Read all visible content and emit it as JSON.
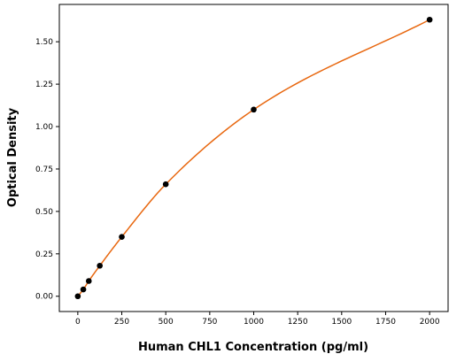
{
  "chart_data": {
    "type": "scatter",
    "title": "",
    "xlabel": "Human CHL1 Concentration (pg/ml)",
    "ylabel": "Optical Density",
    "xlim": [
      -105,
      2105
    ],
    "ylim": [
      -0.09,
      1.72
    ],
    "x_ticks": [
      0,
      250,
      500,
      750,
      1000,
      1250,
      1500,
      1750,
      2000
    ],
    "y_ticks": [
      0.0,
      0.25,
      0.5,
      0.75,
      1.0,
      1.25,
      1.5
    ],
    "y_tick_labels": [
      "0.00",
      "0.25",
      "0.50",
      "0.75",
      "1.00",
      "1.25",
      "1.50"
    ],
    "grid": false,
    "colors": {
      "points": "#000000",
      "fit_curve": "#e8670f"
    },
    "series": [
      {
        "x": [
          0,
          31.25,
          62.5,
          125,
          250,
          500,
          1000,
          2000
        ],
        "y": [
          0.0,
          0.04,
          0.09,
          0.18,
          0.35,
          0.66,
          1.1,
          1.63
        ]
      }
    ],
    "fit": "smooth curve through points"
  }
}
